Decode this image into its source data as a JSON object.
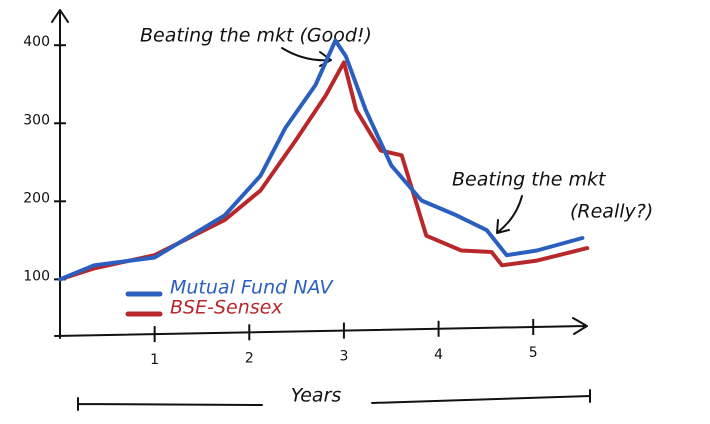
{
  "chart_data": {
    "type": "line",
    "annotations": [
      "Beating the mkt (Good!)",
      "Beating the mkt",
      "(Really?)"
    ],
    "xlabel": "Years",
    "xlim": [
      0,
      5.6
    ],
    "xticks": [
      1,
      2,
      3,
      4,
      5
    ],
    "ylim": [
      30,
      440
    ],
    "yticks": [
      100,
      200,
      300,
      400
    ],
    "series": [
      {
        "name": "Mutual Fund NAV",
        "color": "#2a5fbf",
        "x": [
          0,
          0.36,
          1.0,
          1.74,
          2.12,
          2.38,
          2.7,
          2.91,
          3.02,
          3.23,
          3.5,
          3.82,
          4.19,
          4.51,
          4.72,
          5.04,
          5.52
        ],
        "values": [
          100,
          118,
          128,
          182,
          233,
          294,
          349,
          406,
          386,
          317,
          246,
          201,
          182,
          163,
          131,
          137,
          153
        ]
      },
      {
        "name": "BSE-Sensex",
        "color": "#b8282a",
        "x": [
          0,
          0.36,
          1.0,
          1.74,
          2.12,
          2.49,
          2.81,
          3.0,
          3.13,
          3.39,
          3.61,
          3.87,
          4.24,
          4.56,
          4.67,
          5.04,
          5.57
        ],
        "values": [
          100,
          114,
          131,
          176,
          214,
          278,
          336,
          378,
          317,
          265,
          259,
          156,
          137,
          135,
          118,
          124,
          140
        ]
      }
    ]
  }
}
